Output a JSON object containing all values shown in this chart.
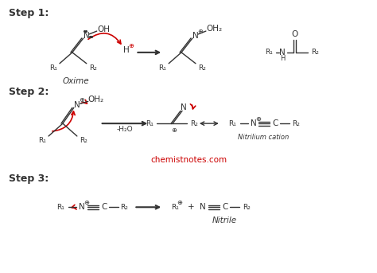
{
  "background_color": "#ffffff",
  "step1_label": "Step 1:",
  "step2_label": "Step 2:",
  "step3_label": "Step 3:",
  "oxime_label": "Oxime",
  "nitrilium_label": "Nitrilium cation",
  "nitrile_label": "Nitrile",
  "wateroff_label": "-H₂O",
  "website": "chemistnotes.com",
  "website_color": "#cc0000",
  "line_color": "#333333",
  "arrow_color": "#cc0000",
  "text_color": "#333333",
  "font_size": 7.5,
  "label_font_size": 9
}
